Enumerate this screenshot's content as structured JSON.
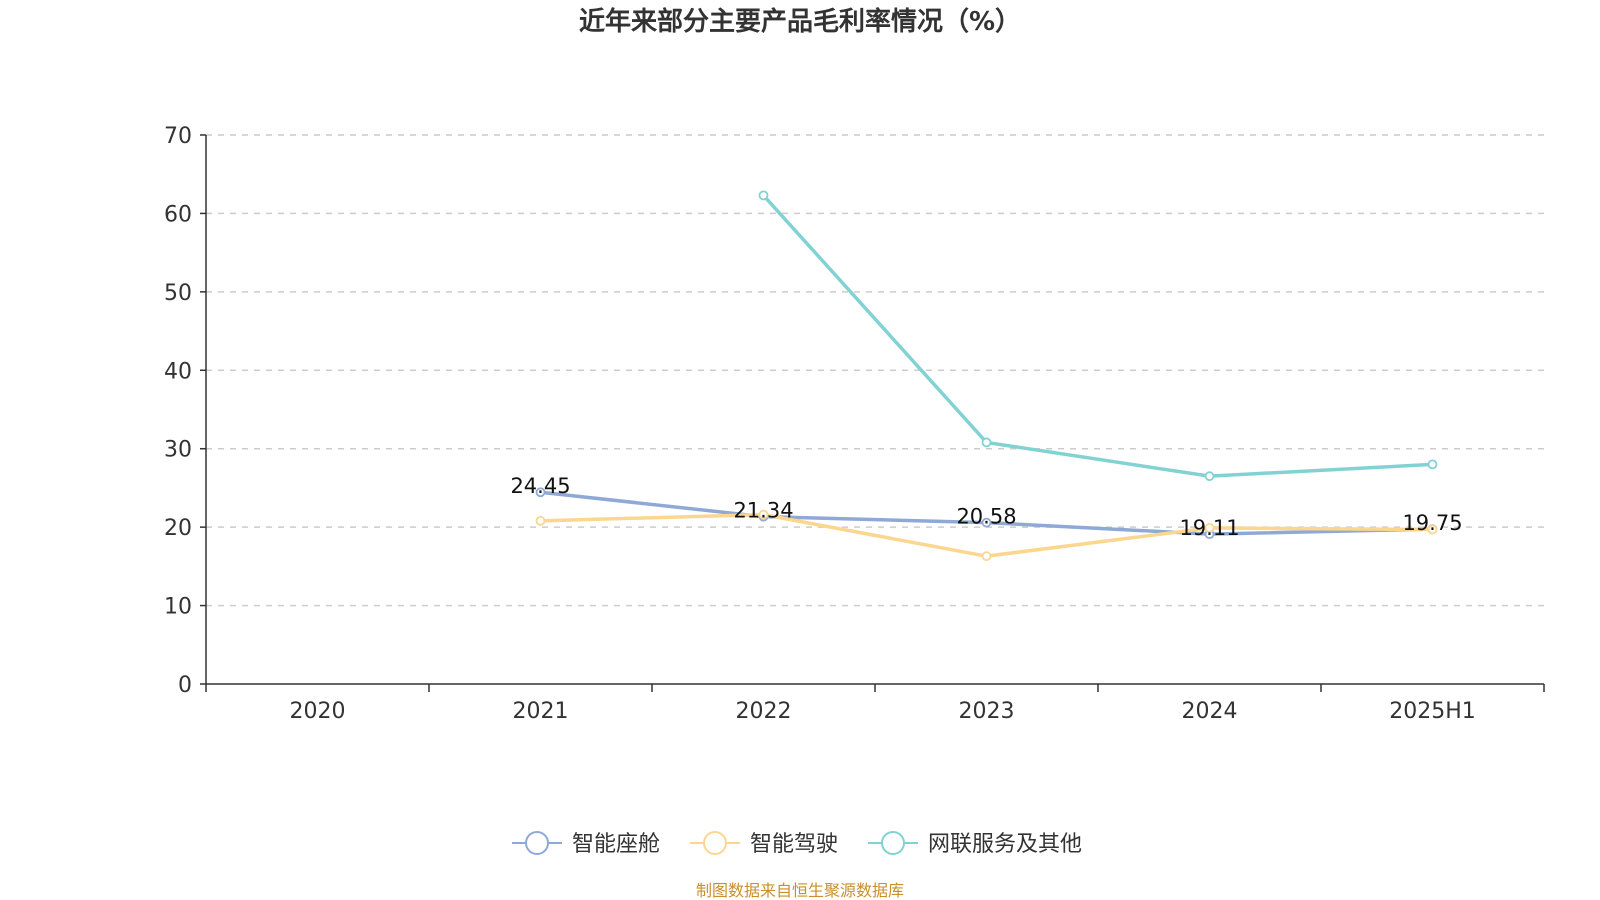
{
  "chart_data": {
    "type": "line",
    "title": "近年来部分主要产品毛利率情况（%）",
    "categories": [
      "2020",
      "2021",
      "2022",
      "2023",
      "2024",
      "2025H1"
    ],
    "ylim": [
      0,
      70
    ],
    "yticks": [
      "0",
      "10",
      "20",
      "30",
      "40",
      "50",
      "60",
      "70"
    ],
    "grid": true,
    "legend_position": "bottom",
    "series": [
      {
        "name": "智能座舱",
        "color": "#8fa9d6",
        "values": [
          null,
          24.45,
          21.34,
          20.58,
          19.11,
          19.75
        ],
        "labels": [
          "",
          "24.45",
          "21.34",
          "20.58",
          "19.11",
          "19.75"
        ]
      },
      {
        "name": "智能驾驶",
        "color": "#fbd68f",
        "values": [
          null,
          20.8,
          21.6,
          16.3,
          19.9,
          19.7
        ]
      },
      {
        "name": "网联服务及其他",
        "color": "#82d2d3",
        "values": [
          null,
          null,
          62.3,
          30.8,
          26.5,
          28.0
        ]
      }
    ]
  },
  "source": "制图数据来自恒生聚源数据库"
}
